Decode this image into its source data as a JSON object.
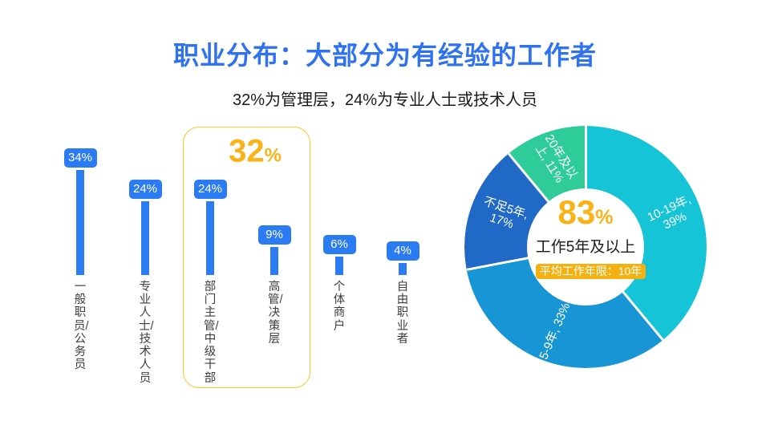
{
  "slide": {
    "title": "职业分布：大部分为有经验的工作者",
    "subtitle": "32%为管理层，24%为专业人士或技术人员"
  },
  "colors": {
    "title_blue": "#2E72F0",
    "bar_blue": "#2B7BF2",
    "gold_text": "#FBB216",
    "highlight_border": "#FFC428",
    "badge_gold": "#F5B10F",
    "donut_cyan": "#15C4D6",
    "donut_blue": "#1795D4",
    "donut_dark_blue": "#2169C7",
    "donut_green": "#2ECC99"
  },
  "chart_data": [
    {
      "type": "bar",
      "unit": "%",
      "categories": [
        "一般职员/公务员",
        "专业人士/技术人员",
        "部门主管/中级干部",
        "高管/决策层",
        "个体商户",
        "自由职业者"
      ],
      "values": [
        34,
        24,
        24,
        9,
        6,
        4
      ],
      "value_labels": [
        "34%",
        "24%",
        "24%",
        "9%",
        "6%",
        "4%"
      ],
      "bar_color": "#2B7BF2",
      "highlight_group": {
        "covers": [
          "部门主管/中级干部",
          "高管/决策层"
        ],
        "value": "32",
        "suffix": "%"
      }
    },
    {
      "type": "pie",
      "donut": true,
      "slices": [
        {
          "name": "10-19年",
          "value": 39,
          "color": "#15C4D6",
          "label_line1": "10-19年,",
          "label_line2": "39%"
        },
        {
          "name": "5-9年",
          "value": 33,
          "color": "#1795D4",
          "label_line1": "5-9年, 33%",
          "label_line2": ""
        },
        {
          "name": "不足5年",
          "value": 17,
          "color": "#2169C7",
          "label_line1": "不足5年,",
          "label_line2": "17%"
        },
        {
          "name": "20年及以上",
          "value": 11,
          "color": "#2ECC99",
          "label_line1": "20年及以",
          "label_line2": "上, 11%"
        }
      ],
      "center": {
        "value": "83",
        "suffix": "%",
        "caption": "工作5年及以上",
        "badge": "平均工作年限：10年"
      }
    }
  ]
}
